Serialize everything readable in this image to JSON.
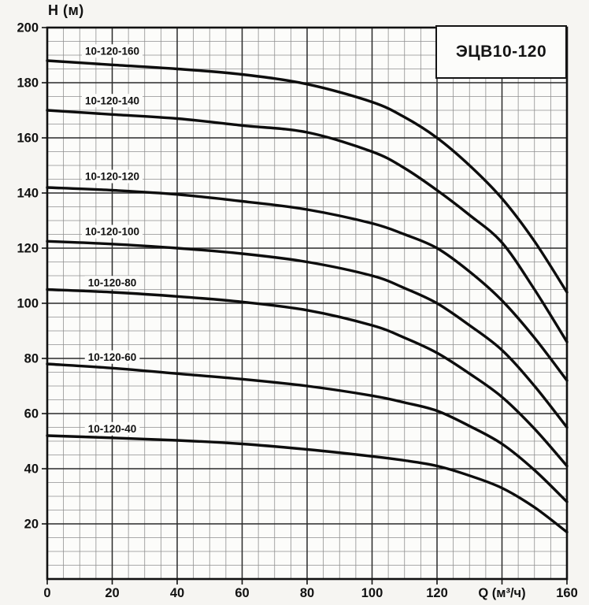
{
  "chart_data": {
    "type": "line",
    "title": "ЭЦВ10-120",
    "ylabel": "H (м)",
    "xlabel": "Q (м³/ч)",
    "xlim": [
      0,
      160
    ],
    "ylim": [
      0,
      200
    ],
    "x_major_step": 20,
    "y_major_step": 20,
    "minor_step": 5,
    "grid": "major+minor",
    "legend_position": "inline-curve-labels",
    "x_tick_labels": [
      "0",
      "20",
      "40",
      "60",
      "80",
      "100",
      "120",
      "Q (м³/ч)",
      "160"
    ],
    "y_tick_labels": [
      "20",
      "40",
      "60",
      "80",
      "100",
      "120",
      "140",
      "160",
      "180",
      "200"
    ],
    "x": [
      0,
      20,
      40,
      60,
      80,
      100,
      110,
      120,
      130,
      140,
      150,
      160
    ],
    "series": [
      {
        "name": "10-120-160",
        "values": [
          188,
          186.5,
          185,
          183,
          179.5,
          173,
          167.5,
          160,
          150,
          138,
          122.5,
          104
        ],
        "label_h": 191.5
      },
      {
        "name": "10-120-140",
        "values": [
          170,
          168.5,
          167,
          164.5,
          162,
          155,
          149,
          141,
          132,
          122,
          105,
          86
        ],
        "label_h": 173.5
      },
      {
        "name": "10-120-120",
        "values": [
          142,
          141,
          139.5,
          137,
          134,
          129,
          125,
          120,
          111.5,
          101,
          87.5,
          72
        ],
        "label_h": 146
      },
      {
        "name": "10-120-100",
        "values": [
          122.5,
          121.5,
          120,
          118,
          115,
          110,
          105.5,
          100,
          92,
          83,
          70,
          55
        ],
        "label_h": 126
      },
      {
        "name": "10-120-80",
        "values": [
          105,
          104,
          102.5,
          100.5,
          97.5,
          92,
          87.5,
          82,
          74.5,
          66,
          54.5,
          41
        ],
        "label_h": 107.5
      },
      {
        "name": "10-120-60",
        "values": [
          78,
          76.5,
          74.5,
          72.5,
          70,
          66.5,
          64,
          61,
          55.5,
          49,
          39.5,
          28
        ],
        "label_h": 80.5
      },
      {
        "name": "10-120-40",
        "values": [
          52,
          51.2,
          50.3,
          49,
          47,
          44.5,
          43,
          41,
          37.5,
          33,
          26,
          17
        ],
        "label_h": 54.5
      }
    ]
  },
  "colors": {
    "background": "#f6f5f2",
    "plot_background": "#fcfcfa",
    "grid_minor": "#8f8f8f",
    "grid_major": "#2a2a2a",
    "border": "#111111",
    "curve": "#0d0d0d",
    "text": "#111111"
  }
}
